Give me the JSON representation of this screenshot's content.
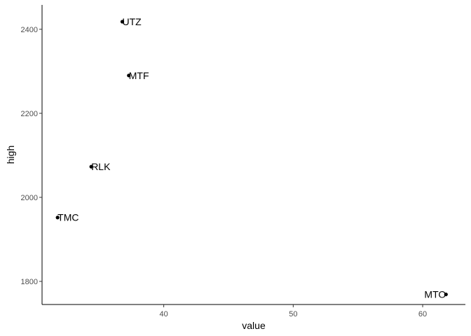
{
  "chart_data": {
    "type": "scatter",
    "xlabel": "value",
    "ylabel": "high",
    "xlim": [
      30.6,
      63.3
    ],
    "ylim": [
      1745,
      2458
    ],
    "xticks": [
      40,
      50,
      60
    ],
    "yticks": [
      1800,
      2000,
      2200,
      2400
    ],
    "grid": false,
    "points": [
      {
        "label": "UTZ",
        "x": 36.8,
        "y": 2418,
        "label_anchor": "start"
      },
      {
        "label": "MTF",
        "x": 37.3,
        "y": 2290,
        "label_anchor": "start"
      },
      {
        "label": "RLK",
        "x": 34.4,
        "y": 2073,
        "label_anchor": "start"
      },
      {
        "label": "TMC",
        "x": 31.8,
        "y": 1952,
        "label_anchor": "start"
      },
      {
        "label": "MTO",
        "x": 61.8,
        "y": 1769,
        "label_anchor": "end"
      }
    ]
  }
}
